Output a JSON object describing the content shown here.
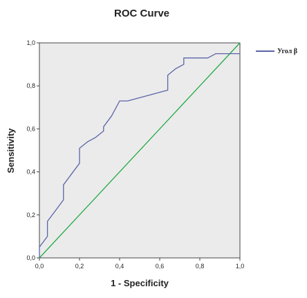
{
  "chart_data": {
    "type": "line",
    "title": "ROC Curve",
    "xlabel": "1 - Specificity",
    "ylabel": "Sensitivity",
    "xlim": [
      0,
      1
    ],
    "ylim": [
      0,
      1
    ],
    "x_ticks": [
      "0,0",
      "0,2",
      "0,4",
      "0,6",
      "0,8",
      "1,0"
    ],
    "y_ticks": [
      "0,0",
      "0,2",
      "0,4",
      "0,6",
      "0,8",
      "1,0"
    ],
    "grid": false,
    "legend_position": "top-right",
    "series": [
      {
        "name": "Угол β",
        "color": "#5a64a8",
        "x": [
          0.0,
          0.0,
          0.04,
          0.04,
          0.08,
          0.12,
          0.12,
          0.16,
          0.2,
          0.2,
          0.24,
          0.28,
          0.32,
          0.32,
          0.36,
          0.4,
          0.44,
          0.64,
          0.64,
          0.68,
          0.72,
          0.72,
          0.8,
          0.84,
          0.88,
          0.92,
          0.96,
          1.0
        ],
        "y": [
          0.0,
          0.05,
          0.1,
          0.17,
          0.22,
          0.27,
          0.34,
          0.39,
          0.44,
          0.51,
          0.54,
          0.56,
          0.59,
          0.61,
          0.66,
          0.73,
          0.73,
          0.78,
          0.85,
          0.88,
          0.9,
          0.93,
          0.93,
          0.93,
          0.95,
          0.95,
          0.95,
          0.95
        ]
      },
      {
        "name": "",
        "color": "#22aa44",
        "x": [
          0,
          1
        ],
        "y": [
          0,
          1
        ]
      }
    ]
  }
}
